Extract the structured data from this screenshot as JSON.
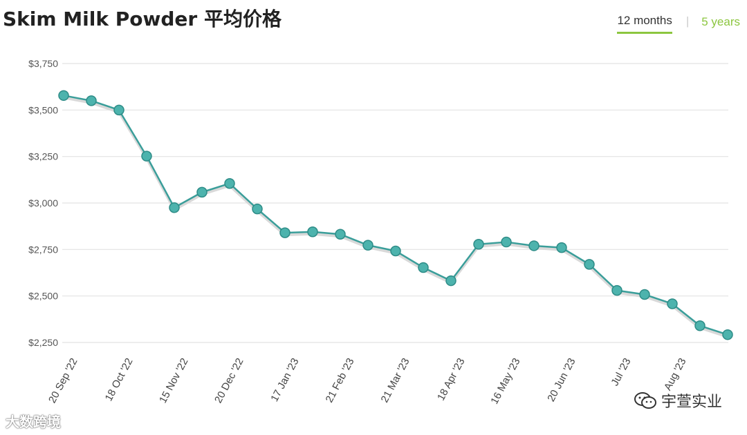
{
  "title": "Skim Milk Powder 平均价格",
  "tabs": [
    {
      "label": "12 months",
      "active": true
    },
    {
      "label": "5 years",
      "active": false
    }
  ],
  "colors": {
    "line": "#3a9e9a",
    "marker": "#4db3ad",
    "accent": "#8cc63f",
    "grid": "#e2e2e2"
  },
  "watermarks": {
    "left": "大数跨境",
    "right": "宇萱实业"
  },
  "chart_data": {
    "type": "line",
    "ylim": [
      2250,
      3750
    ],
    "yticks": [
      2250,
      2500,
      2750,
      3000,
      3250,
      3500,
      3750
    ],
    "ytick_labels": [
      "$2,250",
      "$2,500",
      "$2,750",
      "$3,000",
      "$3,250",
      "$3,500",
      "$3,750"
    ],
    "x_labels": [
      "20 Sep '22",
      "18 Oct '22",
      "15 Nov '22",
      "20 Dec '22",
      "17 Jan '23",
      "21 Feb '23",
      "21 Mar '23",
      "18 Apr '23",
      "16 May '23",
      "20 Jun '23",
      "Jul '23",
      "Aug '23"
    ],
    "x_label_positions": [
      0.5,
      2.5,
      4.5,
      6.5,
      8.5,
      10.5,
      12.5,
      14.5,
      16.5,
      18.5,
      20.5,
      22.5
    ],
    "series": [
      {
        "values": [
          3578,
          3550,
          3500,
          3252,
          2975,
          3058,
          3105,
          2968,
          2840,
          2845,
          2832,
          2773,
          2742,
          2653,
          2582,
          2778,
          2790,
          2770,
          2760,
          2670,
          2530,
          2508,
          2458,
          2340,
          2292
        ]
      }
    ]
  }
}
